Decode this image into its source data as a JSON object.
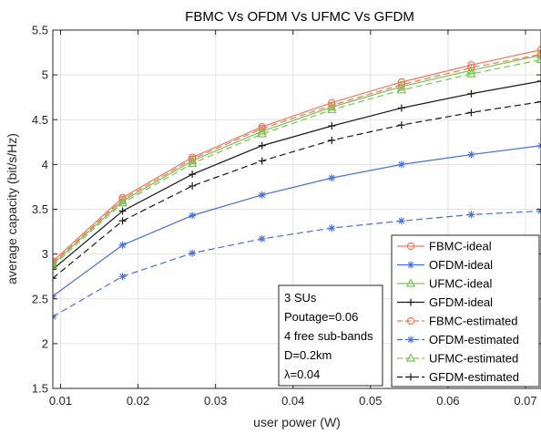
{
  "chart_data": {
    "type": "line",
    "title": "FBMC Vs OFDM Vs UFMC Vs GFDM",
    "xlabel": "user power (W)",
    "ylabel": "average capacity (bit/s/Hz)",
    "xlim": [
      0.009,
      0.072
    ],
    "ylim": [
      1.5,
      5.5
    ],
    "xticks": [
      0.01,
      0.02,
      0.03,
      0.04,
      0.05,
      0.06,
      0.07
    ],
    "xtick_labels": [
      "0.01",
      "0.02",
      "0.03",
      "0.04",
      "0.05",
      "0.06",
      "0.07"
    ],
    "yticks": [
      1.5,
      2,
      2.5,
      3,
      3.5,
      4,
      4.5,
      5,
      5.5
    ],
    "ytick_labels": [
      "1.5",
      "2",
      "2.5",
      "3",
      "3.5",
      "4",
      "4.5",
      "5",
      "5.5"
    ],
    "grid": true,
    "legend_position": "bottom-right",
    "x": [
      0.009,
      0.018,
      0.027,
      0.036,
      0.045,
      0.054,
      0.063,
      0.072
    ],
    "series": [
      {
        "name": "FBMC-ideal",
        "color": "#f07a5a",
        "marker": "circle",
        "dash": "solid",
        "values": [
          2.92,
          3.63,
          4.08,
          4.42,
          4.69,
          4.92,
          5.11,
          5.28
        ]
      },
      {
        "name": "OFDM-ideal",
        "color": "#4a6fd6",
        "marker": "star",
        "dash": "solid",
        "values": [
          2.53,
          3.1,
          3.43,
          3.66,
          3.85,
          4.0,
          4.11,
          4.21
        ]
      },
      {
        "name": "UFMC-ideal",
        "color": "#7ec25a",
        "marker": "triangle",
        "dash": "solid",
        "values": [
          2.89,
          3.59,
          4.04,
          4.37,
          4.64,
          4.87,
          5.05,
          5.22
        ]
      },
      {
        "name": "GFDM-ideal",
        "color": "#1a1a1a",
        "marker": "plus",
        "dash": "solid",
        "values": [
          2.83,
          3.48,
          3.89,
          4.21,
          4.43,
          4.63,
          4.79,
          4.93
        ]
      },
      {
        "name": "FBMC-estimated",
        "color": "#f07a5a",
        "marker": "circle",
        "dash": "dashed",
        "values": [
          2.9,
          3.61,
          4.06,
          4.4,
          4.66,
          4.89,
          5.08,
          5.23
        ]
      },
      {
        "name": "OFDM-estimated",
        "color": "#4a6fd6",
        "marker": "star",
        "dash": "dashed",
        "values": [
          2.3,
          2.75,
          3.01,
          3.17,
          3.29,
          3.37,
          3.44,
          3.48
        ]
      },
      {
        "name": "UFMC-estimated",
        "color": "#7ec25a",
        "marker": "triangle",
        "dash": "dashed",
        "values": [
          2.87,
          3.57,
          4.01,
          4.34,
          4.61,
          4.83,
          5.01,
          5.17
        ]
      },
      {
        "name": "GFDM-estimated",
        "color": "#1a1a1a",
        "marker": "plus",
        "dash": "dashed",
        "values": [
          2.73,
          3.37,
          3.76,
          4.04,
          4.27,
          4.44,
          4.58,
          4.7
        ]
      }
    ],
    "annotation_lines": [
      "3 SUs",
      "Poutage=0.06",
      "4 free sub-bands",
      "D=0.2km",
      "λ=0.04"
    ]
  }
}
